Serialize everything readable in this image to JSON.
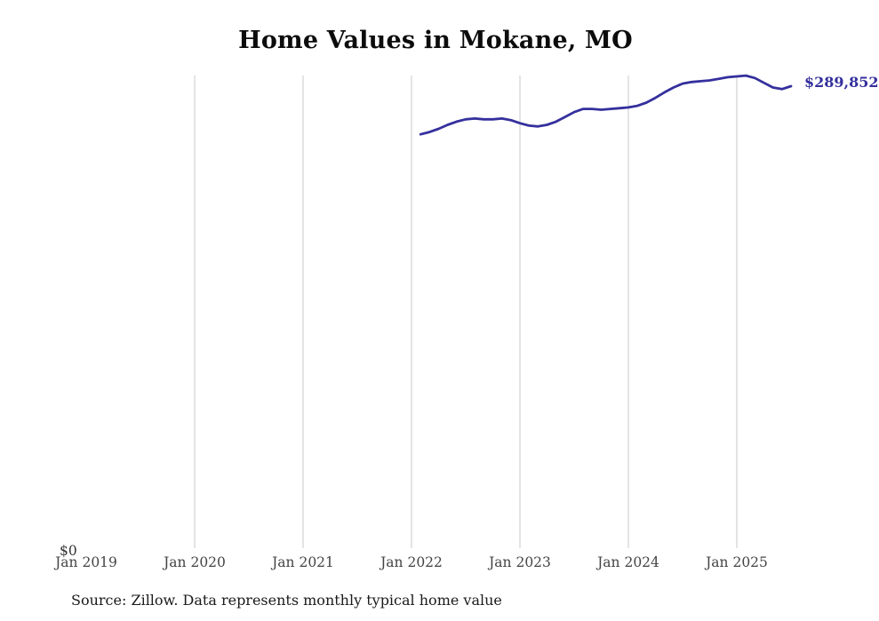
{
  "title": "Home Values in Mokane, MO",
  "source_note": "Source: Zillow. Data represents monthly typical home value",
  "y_axis": {
    "zero_label": "$0"
  },
  "end_label": "$289,852",
  "colors": {
    "line": "#34309d",
    "grid": "#c9c9c9",
    "tick_text": "#444444"
  },
  "chart_data": {
    "type": "line",
    "title": "Home Values in Mokane, MO",
    "xlabel": "",
    "ylabel": "",
    "ylim": [
      0,
      300000
    ],
    "grid": "vertical-only",
    "legend": "none",
    "x_tick_labels": [
      "Jan 2019",
      "Jan 2020",
      "Jan 2021",
      "Jan 2022",
      "Jan 2023",
      "Jan 2024",
      "Jan 2025"
    ],
    "final_value_label": "$289,852",
    "series": [
      {
        "name": "Monthly typical home value",
        "x": [
          "2022-02",
          "2022-03",
          "2022-04",
          "2022-05",
          "2022-06",
          "2022-07",
          "2022-08",
          "2022-09",
          "2022-10",
          "2022-11",
          "2022-12",
          "2023-01",
          "2023-02",
          "2023-03",
          "2023-04",
          "2023-05",
          "2023-06",
          "2023-07",
          "2023-08",
          "2023-09",
          "2023-10",
          "2023-11",
          "2023-12",
          "2024-01",
          "2024-02",
          "2024-03",
          "2024-04",
          "2024-05",
          "2024-06",
          "2024-07",
          "2024-08",
          "2024-09",
          "2024-10",
          "2024-11",
          "2024-12",
          "2025-01",
          "2025-02",
          "2025-03",
          "2025-04",
          "2025-05",
          "2025-06",
          "2025-07"
        ],
        "values": [
          259500,
          261000,
          263000,
          265500,
          267500,
          269000,
          269500,
          269000,
          269000,
          269500,
          268500,
          266500,
          265000,
          264500,
          265500,
          267500,
          270500,
          273500,
          275500,
          275500,
          275000,
          275500,
          276000,
          276500,
          277500,
          279500,
          282500,
          286000,
          289000,
          291500,
          292500,
          293000,
          293500,
          294500,
          295500,
          296000,
          296500,
          295000,
          292000,
          289000,
          288000,
          289852
        ]
      }
    ]
  }
}
